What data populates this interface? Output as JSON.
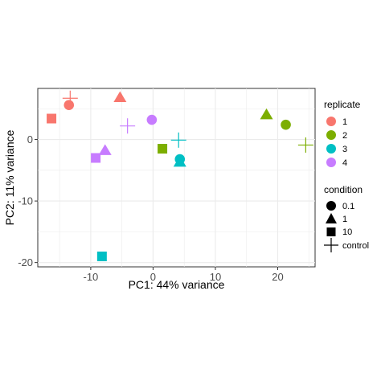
{
  "chart_data": {
    "type": "scatter",
    "title": "",
    "xlabel": "PC1: 44% variance",
    "ylabel": "PC2: 11% variance",
    "xlim": [
      -18.5,
      26
    ],
    "ylim": [
      -20.7,
      8.3
    ],
    "xticks": [
      -10,
      0,
      10,
      20
    ],
    "yticks": [
      -20,
      -10,
      0
    ],
    "tick_labels_x": [
      "-10",
      "0",
      "10",
      "20"
    ],
    "tick_labels_y": [
      "-20",
      "-10",
      "0"
    ],
    "grid": true,
    "legend_position": "right",
    "legends": {
      "replicate": {
        "title": "replicate",
        "items": [
          {
            "label": "1",
            "color": "#F8766D"
          },
          {
            "label": "2",
            "color": "#7CAE00"
          },
          {
            "label": "3",
            "color": "#00BFC4"
          },
          {
            "label": "4",
            "color": "#C77CFF"
          }
        ]
      },
      "condition": {
        "title": "condition",
        "items": [
          {
            "label": "0.1",
            "shape": "circle"
          },
          {
            "label": "1",
            "shape": "triangle"
          },
          {
            "label": "10",
            "shape": "square"
          },
          {
            "label": "control",
            "shape": "plus"
          }
        ]
      }
    },
    "points": [
      {
        "x": -13.3,
        "y": 6.7,
        "replicate": "1",
        "condition": "control"
      },
      {
        "x": -13.5,
        "y": 5.6,
        "replicate": "1",
        "condition": "0.1"
      },
      {
        "x": -16.3,
        "y": 3.4,
        "replicate": "1",
        "condition": "10"
      },
      {
        "x": -5.3,
        "y": 6.8,
        "replicate": "1",
        "condition": "1"
      },
      {
        "x": -4.1,
        "y": 2.2,
        "replicate": "4",
        "condition": "control"
      },
      {
        "x": -0.2,
        "y": 3.2,
        "replicate": "4",
        "condition": "0.1"
      },
      {
        "x": -7.7,
        "y": -1.8,
        "replicate": "4",
        "condition": "1"
      },
      {
        "x": -9.2,
        "y": -3.0,
        "replicate": "4",
        "condition": "10"
      },
      {
        "x": 1.5,
        "y": -1.5,
        "replicate": "2",
        "condition": "10"
      },
      {
        "x": 4.1,
        "y": -0.1,
        "replicate": "3",
        "condition": "control"
      },
      {
        "x": 4.3,
        "y": -3.2,
        "replicate": "3",
        "condition": "0.1"
      },
      {
        "x": 4.3,
        "y": -3.7,
        "replicate": "3",
        "condition": "1"
      },
      {
        "x": 18.2,
        "y": 4.0,
        "replicate": "2",
        "condition": "1"
      },
      {
        "x": 21.3,
        "y": 2.4,
        "replicate": "2",
        "condition": "0.1"
      },
      {
        "x": 24.5,
        "y": -0.9,
        "replicate": "2",
        "condition": "control"
      },
      {
        "x": -8.2,
        "y": -19.0,
        "replicate": "3",
        "condition": "10"
      }
    ]
  }
}
